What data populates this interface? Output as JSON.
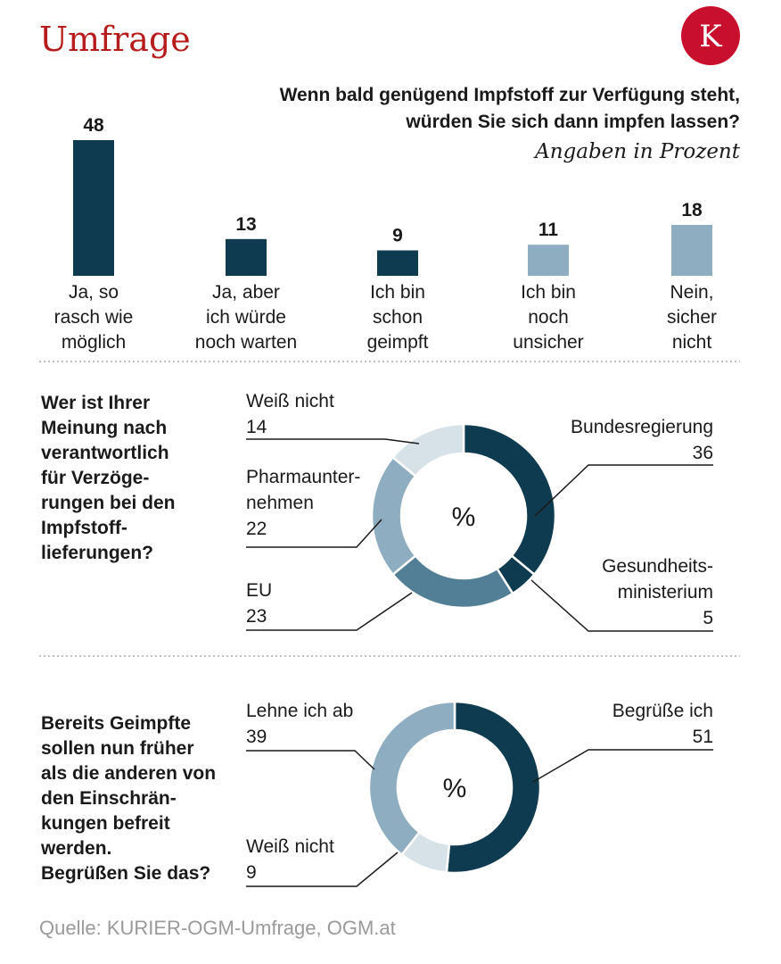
{
  "header": {
    "title": "Umfrage",
    "logo_letter": "K",
    "logo_color": "#c8102e",
    "title_color": "#b71c1c"
  },
  "colors": {
    "dark": "#0f3b50",
    "medium": "#527f96",
    "light": "#8fadc0",
    "pale": "#d6e1e8",
    "text": "#1a1a1a",
    "source": "#9a9a9a"
  },
  "chart_data": [
    {
      "type": "bar",
      "title": "Wenn bald genügend Impfstoff zur Verfügung steht,\nwürden Sie sich dann impfen lassen?",
      "subtitle": "Angaben in Prozent",
      "categories": [
        "Ja, so\nrasch wie\nmöglich",
        "Ja, aber\nich würde\nnoch warten",
        "Ich bin\nschon\ngeimpft",
        "Ich bin\nnoch\nunsicher",
        "Nein,\nsicher\nnicht"
      ],
      "values": [
        48,
        13,
        9,
        11,
        18
      ],
      "bar_colors": [
        "#0f3b50",
        "#0f3b50",
        "#0f3b50",
        "#8fadc0",
        "#8fadc0"
      ],
      "ylim": [
        0,
        48
      ]
    },
    {
      "type": "pie",
      "style": "donut",
      "question": "Wer ist Ihrer\nMeinung nach\nverantwortlich\nfür Verzöge-\nrungen bei den\nImpfstoff-\nlieferungen?",
      "center_label": "%",
      "slices": [
        {
          "label": "Bundesregierung",
          "value": 36,
          "color": "#0f3b50"
        },
        {
          "label": "Gesundheits-\nministerium",
          "value": 5,
          "color": "#0f3b50"
        },
        {
          "label": "EU",
          "value": 23,
          "color": "#527f96"
        },
        {
          "label": "Pharmaunter-\nnehmen",
          "value": 22,
          "color": "#8fadc0"
        },
        {
          "label": "Weiß nicht",
          "value": 14,
          "color": "#d6e1e8"
        }
      ]
    },
    {
      "type": "pie",
      "style": "donut",
      "question": "Bereits Geimpfte\nsollen nun früher\nals die anderen von\nden Einschrän-\nkungen befreit\nwerden.\nBegrüßen Sie das?",
      "center_label": "%",
      "slices": [
        {
          "label": "Begrüße ich",
          "value": 51,
          "color": "#0f3b50"
        },
        {
          "label": "Weiß nicht",
          "value": 9,
          "color": "#d6e1e8"
        },
        {
          "label": "Lehne ich ab",
          "value": 39,
          "color": "#8fadc0"
        }
      ]
    }
  ],
  "source": "Quelle: KURIER-OGM-Umfrage, OGM.at"
}
